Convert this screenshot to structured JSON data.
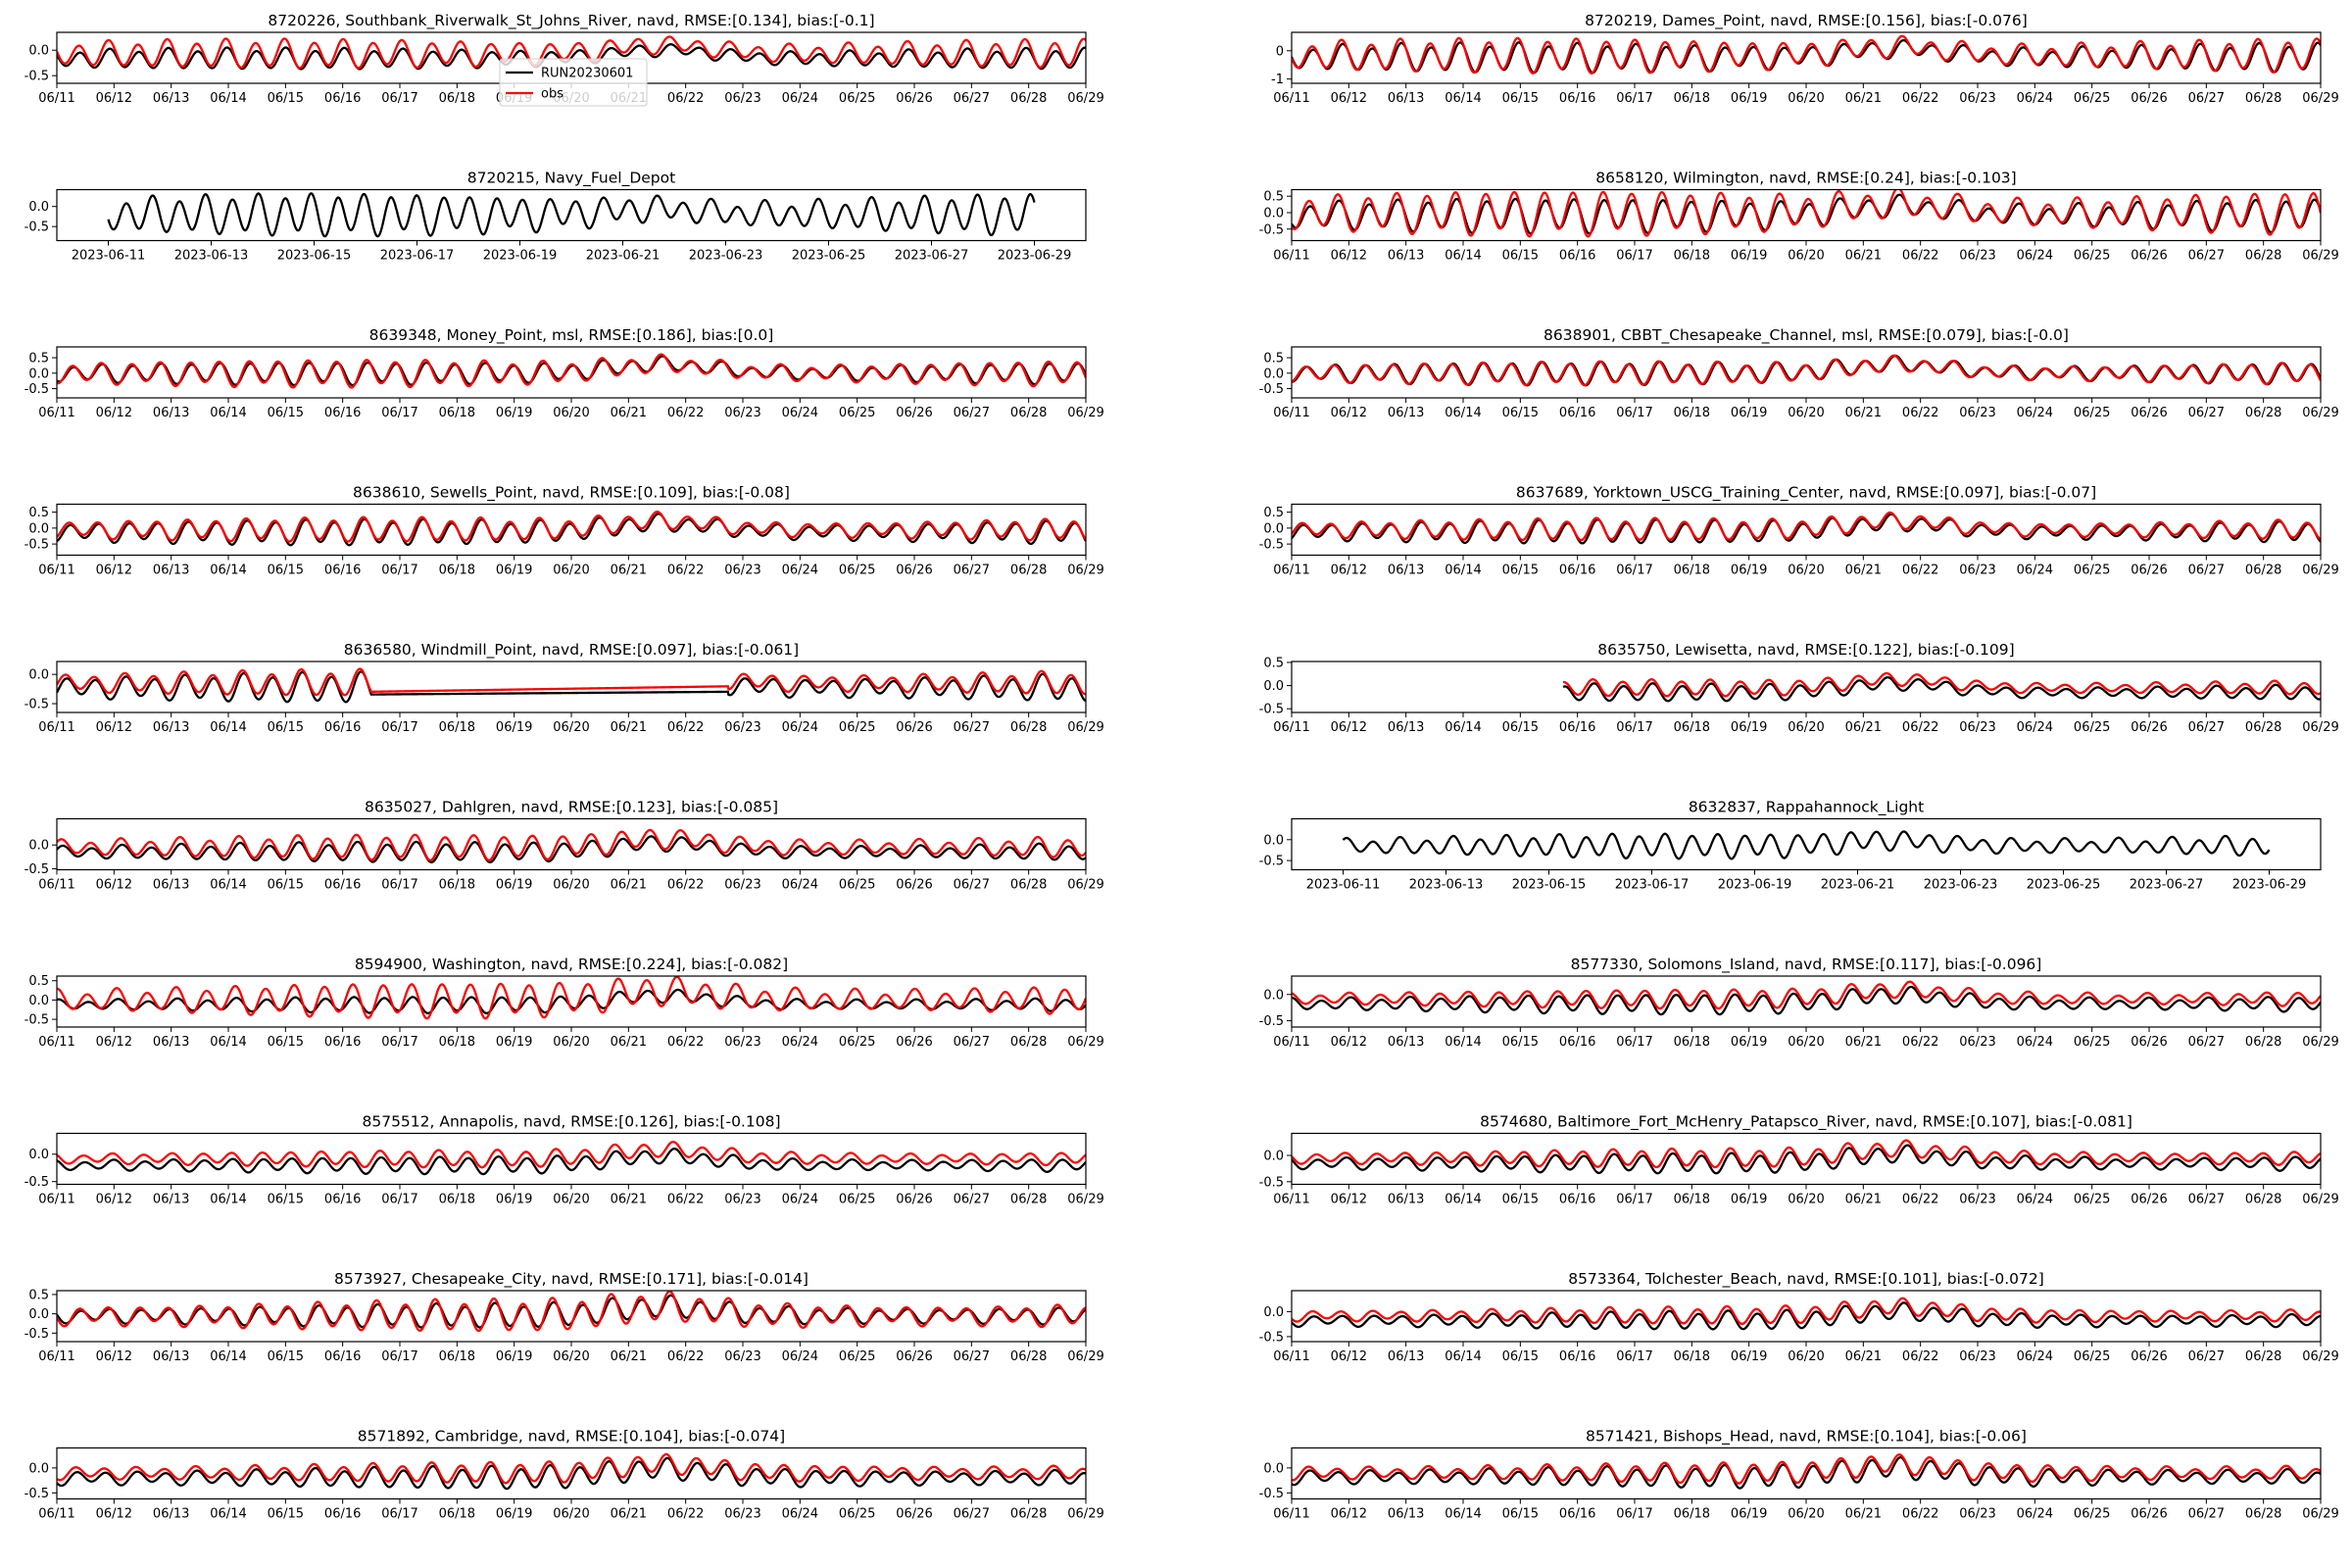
{
  "legend": {
    "placement": "upper-center of first panel",
    "entries": [
      {
        "name": "RUN20230601",
        "color": "#000000"
      },
      {
        "name": "obs",
        "color": "#ff0000"
      }
    ]
  },
  "colors": {
    "model": "#000000",
    "obs": "#ff0000"
  },
  "chart_data": [
    {
      "type": "line",
      "title": "8720226, Southbank_Riverwalk_St_Johns_River, navd, RMSE:[0.134], bias:[-0.1]",
      "x_ticks": [
        "06/11",
        "06/12",
        "06/13",
        "06/14",
        "06/15",
        "06/16",
        "06/17",
        "06/18",
        "06/19",
        "06/20",
        "06/21",
        "06/22",
        "06/23",
        "06/24",
        "06/25",
        "06/26",
        "06/27",
        "06/28",
        "06/29"
      ],
      "xlim": [
        "2023-06-11",
        "2023-06-29"
      ],
      "y_ticks": [
        "0.0",
        "-0.5"
      ],
      "ylim": [
        -0.65,
        0.35
      ],
      "series": [
        {
          "name": "RUN20230601",
          "start": "2023-06-11",
          "end": "2023-06-29",
          "mean": -0.17,
          "amp": 0.2
        },
        {
          "name": "obs",
          "start": "2023-06-11",
          "end": "2023-06-29",
          "mean": -0.07,
          "amp": 0.27
        }
      ]
    },
    {
      "type": "line",
      "title": "8720219, Dames_Point, navd, RMSE:[0.156], bias:[-0.076]",
      "x_ticks": [
        "06/11",
        "06/12",
        "06/13",
        "06/14",
        "06/15",
        "06/16",
        "06/17",
        "06/18",
        "06/19",
        "06/20",
        "06/21",
        "06/22",
        "06/23",
        "06/24",
        "06/25",
        "06/26",
        "06/27",
        "06/28",
        "06/29"
      ],
      "xlim": [
        "2023-06-11",
        "2023-06-29"
      ],
      "y_ticks": [
        "0",
        "-1"
      ],
      "ylim": [
        -1.15,
        0.65
      ],
      "series": [
        {
          "name": "RUN20230601",
          "start": "2023-06-11",
          "end": "2023-06-29",
          "mean": -0.25,
          "amp": 0.5
        },
        {
          "name": "obs",
          "start": "2023-06-11",
          "end": "2023-06-29",
          "mean": -0.17,
          "amp": 0.58
        }
      ]
    },
    {
      "type": "line",
      "title": "8720215, Navy_Fuel_Depot",
      "x_ticks": [
        "2023-06-11",
        "2023-06-13",
        "2023-06-15",
        "2023-06-17",
        "2023-06-19",
        "2023-06-21",
        "2023-06-23",
        "2023-06-25",
        "2023-06-27",
        "2023-06-29"
      ],
      "xlim": [
        "2023-06-10",
        "2023-06-30"
      ],
      "y_ticks": [
        "0.0",
        "-0.5"
      ],
      "ylim": [
        -0.85,
        0.42
      ],
      "series": [
        {
          "name": "RUN20230601",
          "start": "2023-06-11",
          "end": "2023-06-29",
          "mean": -0.2,
          "amp": 0.5
        }
      ]
    },
    {
      "type": "line",
      "title": "8658120, Wilmington, navd, RMSE:[0.24], bias:[-0.103]",
      "x_ticks": [
        "06/11",
        "06/12",
        "06/13",
        "06/14",
        "06/15",
        "06/16",
        "06/17",
        "06/18",
        "06/19",
        "06/20",
        "06/21",
        "06/22",
        "06/23",
        "06/24",
        "06/25",
        "06/26",
        "06/27",
        "06/28",
        "06/29"
      ],
      "xlim": [
        "2023-06-11",
        "2023-06-29"
      ],
      "y_ticks": [
        "0.5",
        "0.0",
        "-0.5"
      ],
      "ylim": [
        -0.85,
        0.7
      ],
      "series": [
        {
          "name": "RUN20230601",
          "start": "2023-06-11",
          "end": "2023-06-29",
          "mean": -0.08,
          "amp": 0.5
        },
        {
          "name": "obs",
          "start": "2023-06-11",
          "end": "2023-06-29",
          "mean": 0.0,
          "amp": 0.65
        }
      ]
    },
    {
      "type": "line",
      "title": "8639348, Money_Point, msl, RMSE:[0.186], bias:[0.0]",
      "x_ticks": [
        "06/11",
        "06/12",
        "06/13",
        "06/14",
        "06/15",
        "06/16",
        "06/17",
        "06/18",
        "06/19",
        "06/20",
        "06/21",
        "06/22",
        "06/23",
        "06/24",
        "06/25",
        "06/26",
        "06/27",
        "06/28",
        "06/29"
      ],
      "xlim": [
        "2023-06-11",
        "2023-06-29"
      ],
      "y_ticks": [
        "0.5",
        "0.0",
        "-0.5"
      ],
      "ylim": [
        -0.8,
        0.85
      ],
      "series": [
        {
          "name": "RUN20230601",
          "start": "2023-06-11",
          "end": "2023-06-29",
          "mean": 0.0,
          "amp": 0.35
        },
        {
          "name": "obs",
          "start": "2023-06-11",
          "end": "2023-06-29",
          "mean": 0.0,
          "amp": 0.42
        }
      ]
    },
    {
      "type": "line",
      "title": "8638901, CBBT_Chesapeake_Channel, msl, RMSE:[0.079], bias:[-0.0]",
      "x_ticks": [
        "06/11",
        "06/12",
        "06/13",
        "06/14",
        "06/15",
        "06/16",
        "06/17",
        "06/18",
        "06/19",
        "06/20",
        "06/21",
        "06/22",
        "06/23",
        "06/24",
        "06/25",
        "06/26",
        "06/27",
        "06/28",
        "06/29"
      ],
      "xlim": [
        "2023-06-11",
        "2023-06-29"
      ],
      "y_ticks": [
        "0.5",
        "0.0",
        "-0.5"
      ],
      "ylim": [
        -0.8,
        0.85
      ],
      "series": [
        {
          "name": "RUN20230601",
          "start": "2023-06-11",
          "end": "2023-06-29",
          "mean": 0.0,
          "amp": 0.36
        },
        {
          "name": "obs",
          "start": "2023-06-11",
          "end": "2023-06-29",
          "mean": 0.0,
          "amp": 0.36
        }
      ]
    },
    {
      "type": "line",
      "title": "8638610, Sewells_Point, navd, RMSE:[0.109], bias:[-0.08]",
      "x_ticks": [
        "06/11",
        "06/12",
        "06/13",
        "06/14",
        "06/15",
        "06/16",
        "06/17",
        "06/18",
        "06/19",
        "06/20",
        "06/21",
        "06/22",
        "06/23",
        "06/24",
        "06/25",
        "06/26",
        "06/27",
        "06/28",
        "06/29"
      ],
      "xlim": [
        "2023-06-11",
        "2023-06-29"
      ],
      "y_ticks": [
        "0.5",
        "0.0",
        "-0.5"
      ],
      "ylim": [
        -0.85,
        0.75
      ],
      "series": [
        {
          "name": "RUN20230601",
          "start": "2023-06-11",
          "end": "2023-06-29",
          "mean": -0.13,
          "amp": 0.38
        },
        {
          "name": "obs",
          "start": "2023-06-11",
          "end": "2023-06-29",
          "mean": -0.05,
          "amp": 0.36
        }
      ]
    },
    {
      "type": "line",
      "title": "8637689, Yorktown_USCG_Training_Center, navd, RMSE:[0.097], bias:[-0.07]",
      "x_ticks": [
        "06/11",
        "06/12",
        "06/13",
        "06/14",
        "06/15",
        "06/16",
        "06/17",
        "06/18",
        "06/19",
        "06/20",
        "06/21",
        "06/22",
        "06/23",
        "06/24",
        "06/25",
        "06/26",
        "06/27",
        "06/28",
        "06/29"
      ],
      "xlim": [
        "2023-06-11",
        "2023-06-29"
      ],
      "y_ticks": [
        "0.5",
        "0.0",
        "-0.5"
      ],
      "ylim": [
        -0.85,
        0.75
      ],
      "series": [
        {
          "name": "RUN20230601",
          "start": "2023-06-11",
          "end": "2023-06-29",
          "mean": -0.12,
          "amp": 0.35
        },
        {
          "name": "obs",
          "start": "2023-06-11",
          "end": "2023-06-29",
          "mean": -0.05,
          "amp": 0.33
        }
      ]
    },
    {
      "type": "line",
      "title": "8636580, Windmill_Point, navd, RMSE:[0.097], bias:[-0.061]",
      "x_ticks": [
        "06/11",
        "06/12",
        "06/13",
        "06/14",
        "06/15",
        "06/16",
        "06/17",
        "06/18",
        "06/19",
        "06/20",
        "06/21",
        "06/22",
        "06/23",
        "06/24",
        "06/25",
        "06/26",
        "06/27",
        "06/28",
        "06/29"
      ],
      "xlim": [
        "2023-06-11",
        "2023-06-29"
      ],
      "y_ticks": [
        "0.0",
        "-0.5"
      ],
      "ylim": [
        -0.65,
        0.22
      ],
      "gap": [
        "2023-06-16 12:00",
        "2023-06-22 18:00"
      ],
      "series": [
        {
          "name": "RUN20230601",
          "start": "2023-06-11",
          "end": "2023-06-29",
          "mean": -0.23,
          "amp": 0.25
        },
        {
          "name": "obs",
          "start": "2023-06-11",
          "end": "2023-06-29",
          "mean": -0.15,
          "amp": 0.22
        }
      ]
    },
    {
      "type": "line",
      "title": "8635750, Lewisetta, navd, RMSE:[0.122], bias:[-0.109]",
      "x_ticks": [
        "06/11",
        "06/12",
        "06/13",
        "06/14",
        "06/15",
        "06/16",
        "06/17",
        "06/18",
        "06/19",
        "06/20",
        "06/21",
        "06/22",
        "06/23",
        "06/24",
        "06/25",
        "06/26",
        "06/27",
        "06/28",
        "06/29"
      ],
      "xlim": [
        "2023-06-11",
        "2023-06-29"
      ],
      "y_ticks": [
        "0.5",
        "0.0",
        "-0.5"
      ],
      "ylim": [
        -0.58,
        0.52
      ],
      "series": [
        {
          "name": "RUN20230601",
          "start": "2023-06-15 18:00",
          "end": "2023-06-29",
          "mean": -0.15,
          "amp": 0.18
        },
        {
          "name": "obs",
          "start": "2023-06-15 18:00",
          "end": "2023-06-29",
          "mean": -0.05,
          "amp": 0.17
        }
      ]
    },
    {
      "type": "line",
      "title": "8635027, Dahlgren, navd, RMSE:[0.123], bias:[-0.085]",
      "x_ticks": [
        "06/11",
        "06/12",
        "06/13",
        "06/14",
        "06/15",
        "06/16",
        "06/17",
        "06/18",
        "06/19",
        "06/20",
        "06/21",
        "06/22",
        "06/23",
        "06/24",
        "06/25",
        "06/26",
        "06/27",
        "06/28",
        "06/29"
      ],
      "xlim": [
        "2023-06-11",
        "2023-06-29"
      ],
      "y_ticks": [
        "0.0",
        "-0.5"
      ],
      "ylim": [
        -0.52,
        0.55
      ],
      "series": [
        {
          "name": "RUN20230601",
          "start": "2023-06-11",
          "end": "2023-06-29",
          "mean": -0.15,
          "amp": 0.2
        },
        {
          "name": "obs",
          "start": "2023-06-11",
          "end": "2023-06-29",
          "mean": -0.05,
          "amp": 0.25
        }
      ]
    },
    {
      "type": "line",
      "title": "8632837, Rappahannock_Light",
      "x_ticks": [
        "2023-06-11",
        "2023-06-13",
        "2023-06-15",
        "2023-06-17",
        "2023-06-19",
        "2023-06-21",
        "2023-06-23",
        "2023-06-25",
        "2023-06-27",
        "2023-06-29"
      ],
      "xlim": [
        "2023-06-10",
        "2023-06-30"
      ],
      "y_ticks": [
        "0.0",
        "-0.5"
      ],
      "ylim": [
        -0.72,
        0.5
      ],
      "series": [
        {
          "name": "RUN20230601",
          "start": "2023-06-11",
          "end": "2023-06-29",
          "mean": -0.15,
          "amp": 0.28
        }
      ]
    },
    {
      "type": "line",
      "title": "8594900, Washington, navd, RMSE:[0.224], bias:[-0.082]",
      "x_ticks": [
        "06/11",
        "06/12",
        "06/13",
        "06/14",
        "06/15",
        "06/16",
        "06/17",
        "06/18",
        "06/19",
        "06/20",
        "06/21",
        "06/22",
        "06/23",
        "06/24",
        "06/25",
        "06/26",
        "06/27",
        "06/28",
        "06/29"
      ],
      "xlim": [
        "2023-06-11",
        "2023-06-29"
      ],
      "y_ticks": [
        "0.5",
        "0.0",
        "-0.5"
      ],
      "ylim": [
        -0.7,
        0.62
      ],
      "series": [
        {
          "name": "RUN20230601",
          "start": "2023-06-11",
          "end": "2023-06-29",
          "mean": -0.12,
          "amp": 0.2
        },
        {
          "name": "obs",
          "start": "2023-06-11",
          "end": "2023-06-29",
          "mean": 0.0,
          "amp": 0.43
        }
      ]
    },
    {
      "type": "line",
      "title": "8577330, Solomons_Island, navd, RMSE:[0.117], bias:[-0.096]",
      "x_ticks": [
        "06/11",
        "06/12",
        "06/13",
        "06/14",
        "06/15",
        "06/16",
        "06/17",
        "06/18",
        "06/19",
        "06/20",
        "06/21",
        "06/22",
        "06/23",
        "06/24",
        "06/25",
        "06/26",
        "06/27",
        "06/28",
        "06/29"
      ],
      "xlim": [
        "2023-06-11",
        "2023-06-29"
      ],
      "y_ticks": [
        "0.0",
        "-0.5"
      ],
      "ylim": [
        -0.62,
        0.35
      ],
      "series": [
        {
          "name": "RUN20230601",
          "start": "2023-06-11",
          "end": "2023-06-29",
          "mean": -0.18,
          "amp": 0.18
        },
        {
          "name": "obs",
          "start": "2023-06-11",
          "end": "2023-06-29",
          "mean": -0.08,
          "amp": 0.17
        }
      ]
    },
    {
      "type": "line",
      "title": "8575512, Annapolis, navd, RMSE:[0.126], bias:[-0.108]",
      "x_ticks": [
        "06/11",
        "06/12",
        "06/13",
        "06/14",
        "06/15",
        "06/16",
        "06/17",
        "06/18",
        "06/19",
        "06/20",
        "06/21",
        "06/22",
        "06/23",
        "06/24",
        "06/25",
        "06/26",
        "06/27",
        "06/28",
        "06/29"
      ],
      "xlim": [
        "2023-06-11",
        "2023-06-29"
      ],
      "y_ticks": [
        "0.0",
        "-0.5"
      ],
      "ylim": [
        -0.55,
        0.38
      ],
      "series": [
        {
          "name": "RUN20230601",
          "start": "2023-06-11",
          "end": "2023-06-29",
          "mean": -0.2,
          "amp": 0.15
        },
        {
          "name": "obs",
          "start": "2023-06-11",
          "end": "2023-06-29",
          "mean": -0.08,
          "amp": 0.15
        }
      ]
    },
    {
      "type": "line",
      "title": "8574680, Baltimore_Fort_McHenry_Patapsco_River, navd, RMSE:[0.107], bias:[-0.081]",
      "x_ticks": [
        "06/11",
        "06/12",
        "06/13",
        "06/14",
        "06/15",
        "06/16",
        "06/17",
        "06/18",
        "06/19",
        "06/20",
        "06/21",
        "06/22",
        "06/23",
        "06/24",
        "06/25",
        "06/26",
        "06/27",
        "06/28",
        "06/29"
      ],
      "xlim": [
        "2023-06-11",
        "2023-06-29"
      ],
      "y_ticks": [
        "0.0",
        "-0.5"
      ],
      "ylim": [
        -0.55,
        0.42
      ],
      "series": [
        {
          "name": "RUN20230601",
          "start": "2023-06-11",
          "end": "2023-06-29",
          "mean": -0.15,
          "amp": 0.18
        },
        {
          "name": "obs",
          "start": "2023-06-11",
          "end": "2023-06-29",
          "mean": -0.05,
          "amp": 0.17
        }
      ]
    },
    {
      "type": "line",
      "title": "8573927, Chesapeake_City, navd, RMSE:[0.171], bias:[-0.014]",
      "x_ticks": [
        "06/11",
        "06/12",
        "06/13",
        "06/14",
        "06/15",
        "06/16",
        "06/17",
        "06/18",
        "06/19",
        "06/20",
        "06/21",
        "06/22",
        "06/23",
        "06/24",
        "06/25",
        "06/26",
        "06/27",
        "06/28",
        "06/29"
      ],
      "xlim": [
        "2023-06-11",
        "2023-06-29"
      ],
      "y_ticks": [
        "0.5",
        "0.0",
        "-0.5"
      ],
      "ylim": [
        -0.72,
        0.6
      ],
      "series": [
        {
          "name": "RUN20230601",
          "start": "2023-06-11",
          "end": "2023-06-29",
          "mean": -0.05,
          "amp": 0.3
        },
        {
          "name": "obs",
          "start": "2023-06-11",
          "end": "2023-06-29",
          "mean": -0.05,
          "amp": 0.4
        }
      ]
    },
    {
      "type": "line",
      "title": "8573364, Tolchester_Beach, navd, RMSE:[0.101], bias:[-0.072]",
      "x_ticks": [
        "06/11",
        "06/12",
        "06/13",
        "06/14",
        "06/15",
        "06/16",
        "06/17",
        "06/18",
        "06/19",
        "06/20",
        "06/21",
        "06/22",
        "06/23",
        "06/24",
        "06/25",
        "06/26",
        "06/27",
        "06/28",
        "06/29"
      ],
      "xlim": [
        "2023-06-11",
        "2023-06-29"
      ],
      "y_ticks": [
        "0.0",
        "-0.5"
      ],
      "ylim": [
        -0.6,
        0.42
      ],
      "series": [
        {
          "name": "RUN20230601",
          "start": "2023-06-11",
          "end": "2023-06-29",
          "mean": -0.18,
          "amp": 0.18
        },
        {
          "name": "obs",
          "start": "2023-06-11",
          "end": "2023-06-29",
          "mean": -0.08,
          "amp": 0.17
        }
      ]
    },
    {
      "type": "line",
      "title": "8571892, Cambridge, navd, RMSE:[0.104], bias:[-0.074]",
      "x_ticks": [
        "06/11",
        "06/12",
        "06/13",
        "06/14",
        "06/15",
        "06/16",
        "06/17",
        "06/18",
        "06/19",
        "06/20",
        "06/21",
        "06/22",
        "06/23",
        "06/24",
        "06/25",
        "06/26",
        "06/27",
        "06/28",
        "06/29"
      ],
      "xlim": [
        "2023-06-11",
        "2023-06-29"
      ],
      "y_ticks": [
        "0.0",
        "-0.5"
      ],
      "ylim": [
        -0.62,
        0.4
      ],
      "series": [
        {
          "name": "RUN20230601",
          "start": "2023-06-11",
          "end": "2023-06-29",
          "mean": -0.2,
          "amp": 0.22
        },
        {
          "name": "obs",
          "start": "2023-06-11",
          "end": "2023-06-29",
          "mean": -0.1,
          "amp": 0.2
        }
      ]
    },
    {
      "type": "line",
      "title": "8571421, Bishops_Head, navd, RMSE:[0.104], bias:[-0.06]",
      "x_ticks": [
        "06/11",
        "06/12",
        "06/13",
        "06/14",
        "06/15",
        "06/16",
        "06/17",
        "06/18",
        "06/19",
        "06/20",
        "06/21",
        "06/22",
        "06/23",
        "06/24",
        "06/25",
        "06/26",
        "06/27",
        "06/28",
        "06/29"
      ],
      "xlim": [
        "2023-06-11",
        "2023-06-29"
      ],
      "y_ticks": [
        "0.0",
        "-0.5"
      ],
      "ylim": [
        -0.62,
        0.4
      ],
      "series": [
        {
          "name": "RUN20230601",
          "start": "2023-06-11",
          "end": "2023-06-29",
          "mean": -0.18,
          "amp": 0.22
        },
        {
          "name": "obs",
          "start": "2023-06-11",
          "end": "2023-06-29",
          "mean": -0.1,
          "amp": 0.2
        }
      ]
    }
  ]
}
